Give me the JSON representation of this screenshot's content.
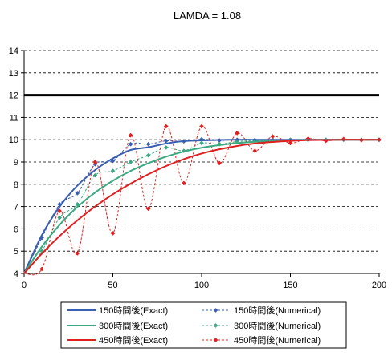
{
  "chart_data": {
    "type": "line",
    "title": "LAMDA = 1.08",
    "xlabel": "",
    "ylabel": "",
    "xlim": [
      0,
      200
    ],
    "ylim": [
      4,
      14
    ],
    "x_ticks": [
      0,
      50,
      100,
      150,
      200
    ],
    "y_ticks": [
      4,
      5,
      6,
      7,
      8,
      9,
      10,
      11,
      12,
      13,
      14
    ],
    "grid": "horizontal dashed",
    "legend": "bottom",
    "reference_line": {
      "y": 12,
      "color": "#000000"
    },
    "series": [
      {
        "name": "150時間後(Exact)",
        "style": "solid",
        "color": "#3a5fb0",
        "x": [
          0,
          10,
          20,
          30,
          40,
          50,
          60,
          70,
          80,
          90,
          100,
          110,
          120,
          130,
          140,
          150,
          160,
          170,
          180,
          190,
          200
        ],
        "y": [
          4,
          5.72,
          6.99,
          7.94,
          8.64,
          9.16,
          9.54,
          9.66,
          9.83,
          9.94,
          9.97,
          9.99,
          10.0,
          10.0,
          10.0,
          10.0,
          10.0,
          10.0,
          10.0,
          10.0,
          10.0
        ]
      },
      {
        "name": "300時間後(Exact)",
        "style": "solid",
        "color": "#3aa880",
        "x": [
          0,
          10,
          20,
          30,
          40,
          50,
          60,
          70,
          80,
          90,
          100,
          110,
          120,
          130,
          140,
          150,
          160,
          170,
          180,
          190,
          200
        ],
        "y": [
          4,
          5.2,
          6.18,
          6.98,
          7.63,
          8.16,
          8.6,
          8.95,
          9.24,
          9.47,
          9.64,
          9.76,
          9.85,
          9.91,
          9.95,
          9.97,
          9.99,
          10.0,
          10.0,
          10.0,
          10.0
        ]
      },
      {
        "name": "450時間後(Exact)",
        "style": "solid",
        "color": "#e02020",
        "x": [
          0,
          10,
          20,
          30,
          40,
          50,
          60,
          70,
          80,
          90,
          100,
          110,
          120,
          130,
          140,
          150,
          160,
          170,
          180,
          190,
          200
        ],
        "y": [
          4,
          4.89,
          5.68,
          6.38,
          7.0,
          7.55,
          8.03,
          8.45,
          8.82,
          9.13,
          9.38,
          9.57,
          9.72,
          9.83,
          9.9,
          9.95,
          9.98,
          9.99,
          10.0,
          10.0,
          10.0
        ]
      },
      {
        "name": "150時間後(Numerical)",
        "style": "dashed",
        "color": "#3a5fb0",
        "x": [
          0,
          10,
          20,
          30,
          40,
          50,
          60,
          70,
          80,
          90,
          100,
          110,
          120,
          130,
          140,
          150,
          160,
          170,
          180,
          190,
          200
        ],
        "y": [
          4,
          5.6,
          7.1,
          7.6,
          8.9,
          9.05,
          9.8,
          9.8,
          9.95,
          9.93,
          10.02,
          9.97,
          10.0,
          9.99,
          10.0,
          10.0,
          10.0,
          10.0,
          10.0,
          10.0,
          10.0
        ]
      },
      {
        "name": "300時間後(Numerical)",
        "style": "dashed",
        "color": "#3aa880",
        "x": [
          0,
          10,
          20,
          30,
          40,
          50,
          60,
          70,
          80,
          90,
          100,
          110,
          120,
          130,
          140,
          150,
          160,
          170,
          180,
          190,
          200
        ],
        "y": [
          4,
          5.0,
          6.5,
          7.1,
          8.4,
          8.6,
          9.0,
          9.3,
          9.65,
          9.5,
          9.85,
          9.8,
          9.92,
          9.95,
          9.97,
          9.98,
          10.0,
          10.0,
          10.0,
          10.0,
          10.0
        ]
      },
      {
        "name": "450時間後(Numerical)",
        "style": "dashed",
        "color": "#e02020",
        "x": [
          0,
          10,
          20,
          30,
          40,
          50,
          60,
          70,
          80,
          90,
          100,
          110,
          120,
          130,
          140,
          150,
          160,
          170,
          180,
          190,
          200
        ],
        "y": [
          4,
          4.2,
          6.8,
          4.9,
          9.0,
          5.8,
          10.2,
          6.9,
          10.6,
          8.05,
          10.6,
          8.95,
          10.3,
          9.5,
          10.15,
          9.85,
          10.05,
          9.95,
          10.03,
          9.98,
          10.0
        ]
      }
    ]
  }
}
